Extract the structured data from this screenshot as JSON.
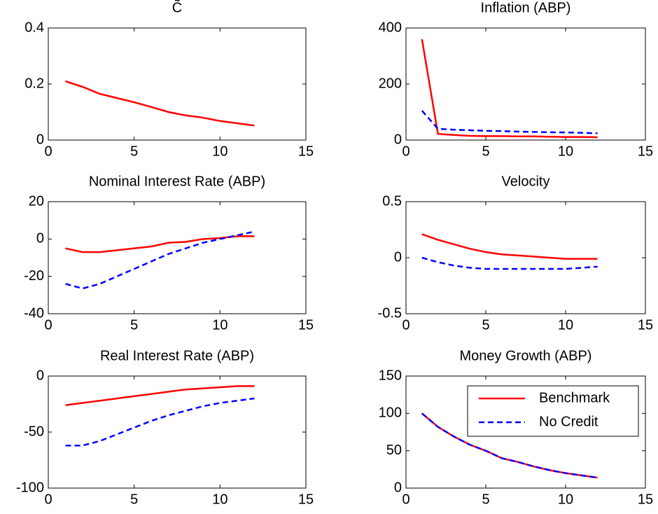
{
  "chart_data": [
    {
      "type": "line",
      "title": "C̃",
      "x": [
        1,
        2,
        3,
        4,
        5,
        6,
        7,
        8,
        9,
        10,
        11,
        12
      ],
      "series": [
        {
          "color": "#ff0000",
          "linestyle": "solid",
          "values": [
            0.21,
            0.19,
            0.165,
            0.15,
            0.135,
            0.118,
            0.1,
            0.088,
            0.08,
            0.068,
            0.06,
            0.052
          ]
        }
      ],
      "xlim": [
        0,
        15
      ],
      "xticks": [
        0,
        5,
        10,
        15
      ],
      "ylim": [
        0,
        0.4
      ],
      "yticks": [
        0,
        0.2,
        0.4
      ]
    },
    {
      "type": "line",
      "title": "Inflation (ABP)",
      "x": [
        1,
        2,
        3,
        4,
        5,
        6,
        7,
        8,
        9,
        10,
        11,
        12
      ],
      "series": [
        {
          "color": "#ff0000",
          "linestyle": "solid",
          "values": [
            360,
            22,
            18,
            15,
            14,
            14,
            13,
            13,
            12,
            11,
            11,
            10
          ]
        },
        {
          "color": "#0000ff",
          "linestyle": "dashed",
          "values": [
            105,
            40,
            37,
            35,
            33,
            32,
            30,
            29,
            28,
            27,
            26,
            24
          ]
        }
      ],
      "xlim": [
        0,
        15
      ],
      "xticks": [
        0,
        5,
        10,
        15
      ],
      "ylim": [
        0,
        400
      ],
      "yticks": [
        0,
        200,
        400
      ]
    },
    {
      "type": "line",
      "title": "Nominal Interest Rate (ABP)",
      "x": [
        1,
        2,
        3,
        4,
        5,
        6,
        7,
        8,
        9,
        10,
        11,
        12
      ],
      "series": [
        {
          "color": "#ff0000",
          "linestyle": "solid",
          "values": [
            -5,
            -7,
            -7,
            -6,
            -5,
            -4,
            -2,
            -1.5,
            0,
            0.5,
            1.5,
            1.5
          ]
        },
        {
          "color": "#0000ff",
          "linestyle": "dashed",
          "values": [
            -24,
            -26.5,
            -24,
            -20,
            -16,
            -12,
            -8,
            -5,
            -2,
            0,
            2,
            4
          ]
        }
      ],
      "xlim": [
        0,
        15
      ],
      "xticks": [
        0,
        5,
        10,
        15
      ],
      "ylim": [
        -40,
        20
      ],
      "yticks": [
        -40,
        -20,
        0,
        20
      ]
    },
    {
      "type": "line",
      "title": "Velocity",
      "x": [
        1,
        2,
        3,
        4,
        5,
        6,
        7,
        8,
        9,
        10,
        11,
        12
      ],
      "series": [
        {
          "color": "#ff0000",
          "linestyle": "solid",
          "values": [
            0.21,
            0.16,
            0.12,
            0.08,
            0.05,
            0.03,
            0.02,
            0.01,
            0,
            -0.01,
            -0.01,
            -0.01
          ]
        },
        {
          "color": "#0000ff",
          "linestyle": "dashed",
          "values": [
            0,
            -0.04,
            -0.07,
            -0.09,
            -0.1,
            -0.1,
            -0.1,
            -0.1,
            -0.1,
            -0.1,
            -0.09,
            -0.08
          ]
        }
      ],
      "xlim": [
        0,
        15
      ],
      "xticks": [
        0,
        5,
        10,
        15
      ],
      "ylim": [
        -0.5,
        0.5
      ],
      "yticks": [
        -0.5,
        0,
        0.5
      ]
    },
    {
      "type": "line",
      "title": "Real Interest Rate (ABP)",
      "x": [
        1,
        2,
        3,
        4,
        5,
        6,
        7,
        8,
        9,
        10,
        11,
        12
      ],
      "series": [
        {
          "color": "#ff0000",
          "linestyle": "solid",
          "values": [
            -26,
            -24,
            -22,
            -20,
            -18,
            -16,
            -14,
            -12,
            -11,
            -10,
            -9,
            -9
          ]
        },
        {
          "color": "#0000ff",
          "linestyle": "dashed",
          "values": [
            -62,
            -62,
            -58,
            -52,
            -46,
            -40,
            -35,
            -31,
            -27,
            -24,
            -22,
            -20
          ]
        }
      ],
      "xlim": [
        0,
        15
      ],
      "xticks": [
        0,
        5,
        10,
        15
      ],
      "ylim": [
        -100,
        0
      ],
      "yticks": [
        -100,
        -50,
        0
      ]
    },
    {
      "type": "line",
      "title": "Money Growth (ABP)",
      "x": [
        1,
        2,
        3,
        4,
        5,
        6,
        7,
        8,
        9,
        10,
        11,
        12
      ],
      "series": [
        {
          "name": "Benchmark",
          "color": "#ff0000",
          "linestyle": "solid",
          "values": [
            100,
            82,
            69,
            58,
            50,
            40,
            35,
            29,
            24,
            20,
            17,
            14
          ]
        },
        {
          "name": "No Credit",
          "color": "#0000ff",
          "linestyle": "dashed",
          "values": [
            100,
            82,
            69,
            58,
            50,
            40,
            35,
            29,
            24,
            20,
            17,
            14
          ]
        }
      ],
      "xlim": [
        0,
        15
      ],
      "xticks": [
        0,
        5,
        10,
        15
      ],
      "ylim": [
        0,
        150
      ],
      "yticks": [
        0,
        50,
        100,
        150
      ],
      "legend": "upper right"
    }
  ]
}
